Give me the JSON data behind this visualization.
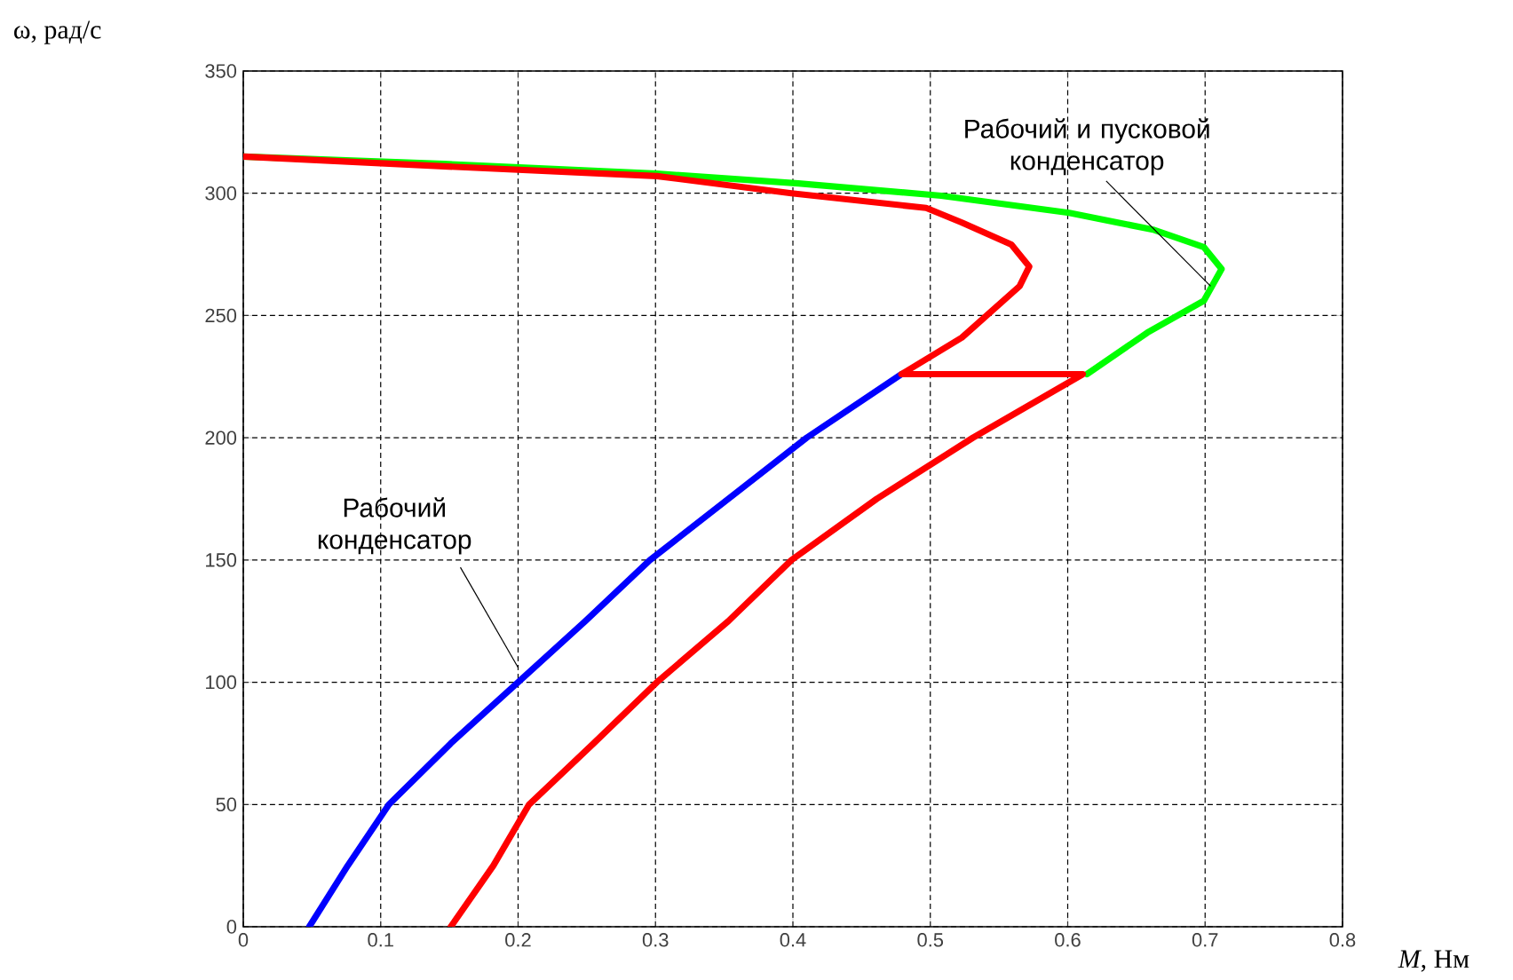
{
  "chart_data": {
    "type": "line",
    "xlabel": "*M*, Нм",
    "ylabel": "ω, рад/с",
    "xlim": [
      0,
      0.8
    ],
    "ylim": [
      0,
      350
    ],
    "xticks": [
      0,
      0.1,
      0.2,
      0.3,
      0.4,
      0.5,
      0.6,
      0.7,
      0.8
    ],
    "yticks": [
      0,
      50,
      100,
      150,
      200,
      250,
      300,
      350
    ],
    "grid": true,
    "marker": "none",
    "line_style": "solid",
    "series": [
      {
        "color": "#00ff00",
        "x": [
          0,
          0.146,
          0.301,
          0.404,
          0.508,
          0.601,
          0.663,
          0.699,
          0.712,
          0.699,
          0.658,
          0.614
        ],
        "values": [
          315,
          312,
          308,
          304,
          299,
          292,
          285,
          278,
          269,
          256,
          243,
          226
        ]
      },
      {
        "color": "#0000ff",
        "x": [
          0.048,
          0.076,
          0.106,
          0.151,
          0.2,
          0.249,
          0.296,
          0.353,
          0.41,
          0.479
        ],
        "values": [
          0,
          25,
          50,
          75,
          100,
          125,
          150,
          175,
          200,
          226
        ]
      },
      {
        "color": "#ff0000",
        "x": [
          0,
          0.146,
          0.301,
          0.399,
          0.497,
          0.523,
          0.559,
          0.572,
          0.565,
          0.523,
          0.479,
          0.611,
          0.531,
          0.461,
          0.399,
          0.353,
          0.301,
          0.255,
          0.208,
          0.182,
          0.151
        ],
        "values": [
          315,
          311,
          307,
          300,
          294,
          288,
          279,
          270,
          262,
          241,
          226,
          226,
          200,
          175,
          150,
          125,
          100,
          75,
          50,
          25,
          0
        ]
      }
    ],
    "annotations": [
      {
        "text": "Рабочий и пусковой конденсатор",
        "x": 0.704,
        "y": 262
      },
      {
        "text": "Рабочий конденсатор",
        "x": 0.2,
        "y": 106
      }
    ]
  }
}
